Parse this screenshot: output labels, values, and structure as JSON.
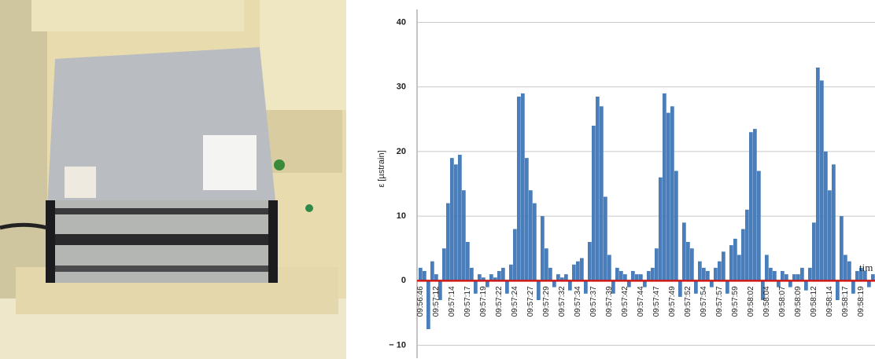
{
  "chart_data": {
    "type": "bar",
    "y_label": "ε [µstrain]",
    "x_label": "tim",
    "color": "#4a7ebb",
    "baseline_color": "#d01818",
    "grid": true,
    "ylim": [
      -12,
      42
    ],
    "yticks": [
      {
        "value": -10,
        "label": "− 10"
      },
      0,
      10,
      20,
      30,
      40
    ],
    "categories": [
      "09:56:46",
      null,
      null,
      null,
      "09:57:12",
      null,
      null,
      null,
      "09:57:14",
      null,
      null,
      null,
      "09:57:17",
      null,
      null,
      null,
      "09:57:19",
      null,
      null,
      null,
      "09:57:22",
      null,
      null,
      null,
      "09:57:24",
      null,
      null,
      null,
      "09:57:27",
      null,
      null,
      null,
      "09:57:29",
      null,
      null,
      null,
      "09:57:32",
      null,
      null,
      null,
      "09:57:34",
      null,
      null,
      null,
      "09:57:37",
      null,
      null,
      null,
      "09:57:39",
      null,
      null,
      null,
      "09:57:42",
      null,
      null,
      null,
      "09:57:44",
      null,
      null,
      null,
      "09:57:47",
      null,
      null,
      null,
      "09:57:49",
      null,
      null,
      null,
      "09:57:52",
      null,
      null,
      null,
      "09:57:54",
      null,
      null,
      null,
      "09:57:57",
      null,
      null,
      null,
      "09:57:59",
      null,
      null,
      null,
      "09:58:02",
      null,
      null,
      null,
      "09:58:04",
      null,
      null,
      null,
      "09:58:07",
      null,
      null,
      null,
      "09:58:09",
      null,
      null,
      null,
      "09:58:12",
      null,
      null,
      null,
      "09:58:14",
      null,
      null,
      null,
      "09:58:17",
      null,
      null,
      null,
      "09:58:19",
      null,
      null,
      null
    ],
    "values": [
      2,
      1.5,
      -7.5,
      3,
      1,
      -3,
      5,
      12,
      19,
      18,
      19.5,
      14,
      6,
      2,
      -2,
      1,
      0.5,
      -1,
      1,
      0.5,
      1.5,
      2,
      -2,
      2.5,
      8,
      28.5,
      29,
      19,
      14,
      12,
      -3,
      10,
      5,
      2,
      -1,
      1,
      0.5,
      1,
      -1.5,
      2.5,
      3,
      3.5,
      -2,
      6,
      24,
      28.5,
      27,
      13,
      4,
      -2,
      2,
      1.5,
      1,
      -1,
      1.5,
      1,
      1,
      -1,
      1.5,
      2,
      5,
      16,
      29,
      26,
      27,
      17,
      -2.5,
      9,
      6,
      5,
      -2,
      3,
      2,
      1.5,
      -1,
      2,
      3,
      4.5,
      -2,
      5.5,
      6.5,
      4,
      8,
      11,
      23,
      23.5,
      17,
      -3,
      4,
      2,
      1.5,
      -1,
      1.5,
      1,
      -1,
      1,
      1,
      2,
      -1.5,
      2,
      9,
      33,
      31,
      20,
      14,
      18,
      -3,
      10,
      4,
      3,
      -2,
      1.5,
      2,
      1.5,
      -1,
      1
    ]
  }
}
